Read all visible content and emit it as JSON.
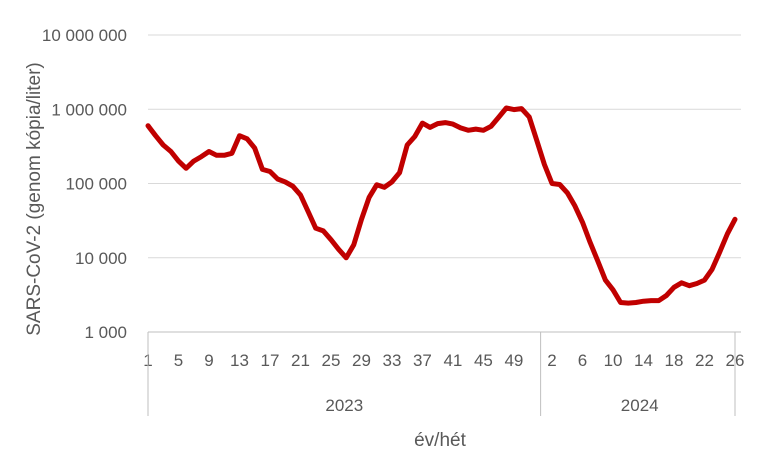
{
  "chart_data": {
    "type": "line",
    "ylabel": "SARS-CoV-2 (genom kópia/liter)",
    "xlabel": "év/hét",
    "yscale": "log",
    "ylim": [
      1000,
      10000000
    ],
    "grid": "horizontal",
    "legend": "none",
    "y_ticks": [
      "1 000",
      "10 000",
      "100 000",
      "1 000 000",
      "10 000 000"
    ],
    "year_groups": [
      {
        "label": "2023",
        "week_count": 52
      },
      {
        "label": "2024",
        "week_count": 26
      }
    ],
    "x_tick_labels": [
      {
        "index": 0,
        "label": "1"
      },
      {
        "index": 4,
        "label": "5"
      },
      {
        "index": 8,
        "label": "9"
      },
      {
        "index": 12,
        "label": "13"
      },
      {
        "index": 16,
        "label": "17"
      },
      {
        "index": 20,
        "label": "21"
      },
      {
        "index": 24,
        "label": "25"
      },
      {
        "index": 28,
        "label": "29"
      },
      {
        "index": 32,
        "label": "33"
      },
      {
        "index": 36,
        "label": "37"
      },
      {
        "index": 40,
        "label": "41"
      },
      {
        "index": 44,
        "label": "45"
      },
      {
        "index": 48,
        "label": "49"
      },
      {
        "index": 53,
        "label": "2"
      },
      {
        "index": 57,
        "label": "6"
      },
      {
        "index": 61,
        "label": "10"
      },
      {
        "index": 65,
        "label": "14"
      },
      {
        "index": 69,
        "label": "18"
      },
      {
        "index": 73,
        "label": "22"
      },
      {
        "index": 77,
        "label": "26"
      }
    ],
    "series": [
      {
        "color": "#c00000",
        "values": [
          600000,
          440000,
          330000,
          270000,
          200000,
          160000,
          200000,
          230000,
          270000,
          240000,
          240000,
          255000,
          440000,
          400000,
          300000,
          155000,
          145000,
          115000,
          105000,
          92000,
          70000,
          42000,
          25000,
          23000,
          17500,
          13000,
          10000,
          15000,
          33000,
          65000,
          96000,
          89000,
          105000,
          140000,
          330000,
          430000,
          650000,
          570000,
          640000,
          660000,
          630000,
          560000,
          520000,
          540000,
          520000,
          590000,
          780000,
          1040000,
          990000,
          1020000,
          790000,
          380000,
          180000,
          100000,
          97000,
          75000,
          50000,
          30000,
          16000,
          9000,
          5000,
          3700,
          2500,
          2450,
          2500,
          2600,
          2650,
          2650,
          3100,
          4000,
          4600,
          4200,
          4500,
          5000,
          7000,
          12000,
          21000,
          33000
        ]
      }
    ]
  }
}
